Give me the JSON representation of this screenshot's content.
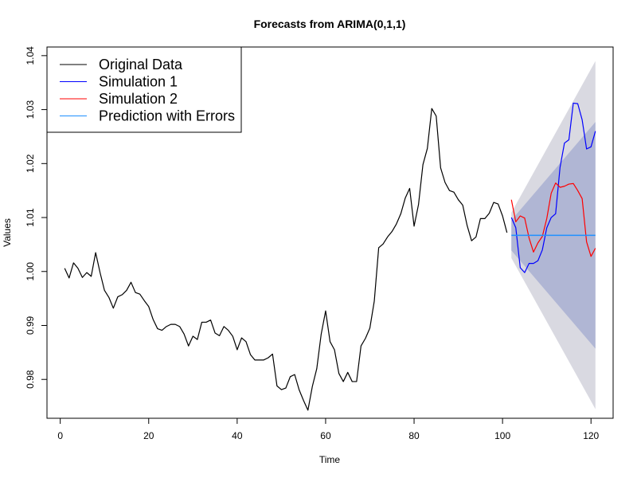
{
  "chart_data": {
    "type": "line",
    "title": "Forecasts from ARIMA(0,1,1)",
    "xlabel": "Time",
    "ylabel": "Values",
    "xlim": [
      -3,
      125
    ],
    "ylim": [
      0.9728,
      1.0416
    ],
    "x_ticks": [
      0,
      20,
      40,
      60,
      80,
      100,
      120
    ],
    "y_ticks": [
      0.98,
      0.99,
      1.0,
      1.01,
      1.02,
      1.03,
      1.04
    ],
    "y_tick_labels": [
      "0.98",
      "0.99",
      "1.00",
      "1.01",
      "1.02",
      "1.03",
      "1.04"
    ],
    "legend_position": "top-left",
    "grid": false,
    "series": [
      {
        "name": "Original Data",
        "color": "#000000",
        "x": [
          1,
          2,
          3,
          4,
          5,
          6,
          7,
          8,
          9,
          10,
          11,
          12,
          13,
          14,
          15,
          16,
          17,
          18,
          19,
          20,
          21,
          22,
          23,
          24,
          25,
          26,
          27,
          28,
          29,
          30,
          31,
          32,
          33,
          34,
          35,
          36,
          37,
          38,
          39,
          40,
          41,
          42,
          43,
          44,
          45,
          46,
          47,
          48,
          49,
          50,
          51,
          52,
          53,
          54,
          55,
          56,
          57,
          58,
          59,
          60,
          61,
          62,
          63,
          64,
          65,
          66,
          67,
          68,
          69,
          70,
          71,
          72,
          73,
          74,
          75,
          76,
          77,
          78,
          79,
          80,
          81,
          82,
          83,
          84,
          85,
          86,
          87,
          88,
          89,
          90,
          91,
          92,
          93,
          94,
          95,
          96,
          97,
          98,
          99,
          100,
          101
        ],
        "values": [
          1.0006,
          0.9988,
          1.0016,
          1.0006,
          0.9989,
          0.9998,
          0.9991,
          1.0035,
          0.9998,
          0.9965,
          0.9952,
          0.9932,
          0.9953,
          0.9957,
          0.9965,
          0.998,
          0.9961,
          0.9958,
          0.9946,
          0.9935,
          0.9911,
          0.9894,
          0.9891,
          0.9898,
          0.9902,
          0.9902,
          0.9898,
          0.9884,
          0.9862,
          0.988,
          0.9874,
          0.9906,
          0.9906,
          0.991,
          0.9886,
          0.9881,
          0.9898,
          0.9891,
          0.988,
          0.9855,
          0.9877,
          0.987,
          0.9846,
          0.9836,
          0.9836,
          0.9836,
          0.984,
          0.9847,
          0.9788,
          0.9781,
          0.9784,
          0.9805,
          0.9809,
          0.9781,
          0.9761,
          0.9743,
          0.9787,
          0.982,
          0.9884,
          0.9927,
          0.987,
          0.9855,
          0.9811,
          0.9796,
          0.9813,
          0.9796,
          0.9796,
          0.9862,
          0.9876,
          0.9895,
          0.9945,
          1.0044,
          1.0051,
          1.0064,
          1.0074,
          1.0088,
          1.0107,
          1.0136,
          1.0154,
          1.0084,
          1.0124,
          1.0198,
          1.0228,
          1.0302,
          1.0288,
          1.0192,
          1.0165,
          1.015,
          1.0147,
          1.0133,
          1.0123,
          1.0085,
          1.0057,
          1.0064,
          1.0098,
          1.0098,
          1.0108,
          1.0128,
          1.0125,
          1.0103,
          1.0072
        ]
      },
      {
        "name": "Simulation 1",
        "color": "#0000ff",
        "x": [
          102,
          103,
          104,
          105,
          106,
          107,
          108,
          109,
          110,
          111,
          112,
          113,
          114,
          115,
          116,
          117,
          118,
          119,
          120,
          121
        ],
        "values": [
          1.01,
          1.0081,
          1.0007,
          0.9998,
          1.0015,
          1.0015,
          1.002,
          1.004,
          1.0081,
          1.01,
          1.0107,
          1.0193,
          1.0238,
          1.0244,
          1.0312,
          1.0311,
          1.0281,
          1.0227,
          1.0231,
          1.026
        ]
      },
      {
        "name": "Simulation 2",
        "color": "#ff0000",
        "x": [
          102,
          103,
          104,
          105,
          106,
          107,
          108,
          109,
          110,
          111,
          112,
          113,
          114,
          115,
          116,
          117,
          118,
          119,
          120,
          121
        ],
        "values": [
          1.0133,
          1.0092,
          1.0103,
          1.0099,
          1.0062,
          1.0036,
          1.0053,
          1.0065,
          1.0098,
          1.0145,
          1.0164,
          1.0156,
          1.0158,
          1.0162,
          1.0163,
          1.015,
          1.0135,
          1.0055,
          1.0028,
          1.0043
        ]
      },
      {
        "name": "Prediction with Errors",
        "color": "#1e90ff",
        "x": [
          102,
          121
        ],
        "values": [
          1.0067,
          1.0067
        ]
      }
    ],
    "intervals": [
      {
        "level": "outer",
        "color": "#d9d9e1",
        "lower": [
          1.0025,
          0.9745
        ],
        "upper": [
          1.0109,
          1.039
        ]
      },
      {
        "level": "inner",
        "color": "#b0b6d4",
        "lower": [
          1.0039,
          0.9857
        ],
        "upper": [
          1.0095,
          1.0277
        ]
      }
    ],
    "interval_x": [
      102,
      121
    ]
  }
}
